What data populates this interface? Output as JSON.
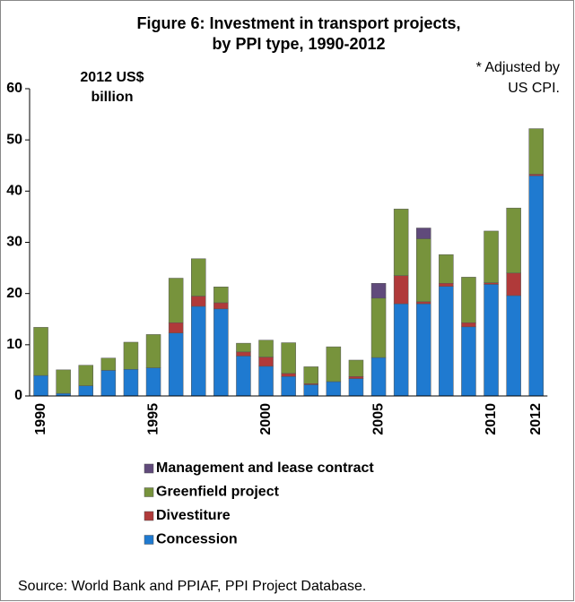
{
  "chart_data": {
    "type": "stacked_bar",
    "title": [
      "Figure 6: Investment in transport projects,",
      "by PPI type, 1990-2012"
    ],
    "y_label": [
      "2012 US$",
      "billion"
    ],
    "annotation": [
      "* Adjusted by",
      "US CPI."
    ],
    "source": "Source:  World Bank and PPIAF, PPI Project Database.",
    "categories": [
      "1990",
      null,
      null,
      null,
      null,
      "1995",
      null,
      null,
      null,
      null,
      "2000",
      null,
      null,
      null,
      null,
      "2005",
      null,
      null,
      null,
      null,
      "2010",
      null,
      "2012"
    ],
    "series": [
      {
        "name": "Concession",
        "color": "#1f7ad0",
        "values": [
          4.0,
          0.5,
          2.0,
          5.0,
          5.2,
          5.5,
          12.3,
          17.5,
          17.0,
          7.8,
          5.8,
          3.8,
          2.2,
          2.8,
          3.4,
          7.5,
          18.0,
          18.0,
          21.4,
          13.5,
          21.8,
          19.6,
          43.0
        ]
      },
      {
        "name": "Divestiture",
        "color": "#b03a3a",
        "values": [
          0,
          0,
          0,
          0,
          0,
          0,
          2.0,
          2.0,
          1.2,
          0.8,
          1.8,
          0.6,
          0.2,
          0,
          0.4,
          0,
          5.5,
          0.4,
          0.6,
          0.8,
          0.3,
          4.4,
          0.3
        ]
      },
      {
        "name": "Greenfield project",
        "color": "#77933c",
        "values": [
          9.4,
          4.6,
          4.0,
          2.4,
          5.3,
          6.5,
          8.7,
          7.3,
          3.1,
          1.7,
          3.3,
          6.0,
          3.3,
          6.8,
          3.2,
          11.6,
          13.0,
          12.3,
          5.6,
          8.9,
          10.1,
          12.7,
          8.9
        ]
      },
      {
        "name": "Management and lease contract",
        "color": "#604a7b",
        "values": [
          0,
          0,
          0,
          0,
          0,
          0,
          0,
          0,
          0,
          0,
          0,
          0,
          0,
          0,
          0,
          2.9,
          0,
          2.1,
          0,
          0,
          0,
          0,
          0
        ]
      }
    ],
    "ylim": [
      0,
      60
    ],
    "yticks": [
      0,
      10,
      20,
      30,
      40,
      50,
      60
    ]
  }
}
